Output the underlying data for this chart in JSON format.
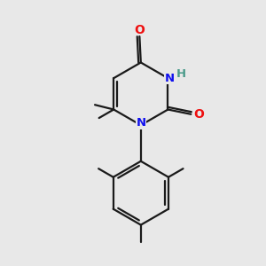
{
  "background_color": "#e8e8e8",
  "bond_color": "#1a1a1a",
  "nitrogen_color": "#1010ee",
  "oxygen_color": "#ee1010",
  "hydrogen_color": "#4a9a8a",
  "line_width": 1.6,
  "figsize": [
    3.0,
    3.0
  ],
  "dpi": 100,
  "xlim": [
    0,
    10
  ],
  "ylim": [
    0,
    10
  ]
}
